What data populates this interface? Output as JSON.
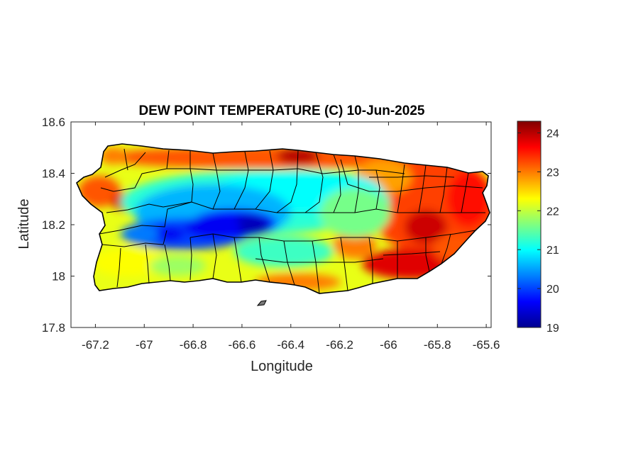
{
  "figure": {
    "title": "DEW POINT TEMPERATURE (C) 10-Jun-2025",
    "xlabel": "Longitude",
    "ylabel": "Latitude"
  },
  "chart_data": {
    "type": "heatmap",
    "title": "DEW POINT TEMPERATURE (C) 10-Jun-2025",
    "xlabel": "Longitude",
    "ylabel": "Latitude",
    "xlim": [
      -67.3,
      -65.58
    ],
    "ylim": [
      17.8,
      18.6
    ],
    "x_ticks": [
      -67.2,
      -67,
      -66.8,
      -66.6,
      -66.4,
      -66.2,
      -66,
      -65.8,
      -65.6
    ],
    "x_tick_labels": [
      "-67.2",
      "-67",
      "-66.8",
      "-66.6",
      "-66.4",
      "-66.2",
      "-66",
      "-65.8",
      "-65.6"
    ],
    "y_ticks": [
      17.8,
      18,
      18.2,
      18.4,
      18.6
    ],
    "y_tick_labels": [
      "17.8",
      "18",
      "18.2",
      "18.4",
      "18.6"
    ],
    "colorbar": {
      "colormap": "jet",
      "range": [
        19,
        24.3
      ],
      "ticks": [
        19,
        20,
        21,
        22,
        23,
        24
      ],
      "tick_labels": [
        "19",
        "20",
        "21",
        "22",
        "23",
        "24"
      ]
    },
    "grid": false,
    "region": "Puerto Rico with municipality boundaries",
    "field_features": [
      {
        "description": "dry core (minimum) along central cordillera",
        "lon": -66.72,
        "lat": 18.18,
        "value": 19.2
      },
      {
        "description": "dry core",
        "lon": -66.55,
        "lat": 18.2,
        "value": 19.5
      },
      {
        "description": "dry core",
        "lon": -66.9,
        "lat": 18.17,
        "value": 19.6
      },
      {
        "description": "humid north coast",
        "lon": -66.4,
        "lat": 18.47,
        "value": 23.8
      },
      {
        "description": "humid east",
        "lon": -65.85,
        "lat": 18.32,
        "value": 24.0
      },
      {
        "description": "humid southeast coast",
        "lon": -65.95,
        "lat": 18.0,
        "value": 24.0
      },
      {
        "description": "humid west coast",
        "lon": -67.15,
        "lat": 18.28,
        "value": 23.5
      }
    ]
  }
}
